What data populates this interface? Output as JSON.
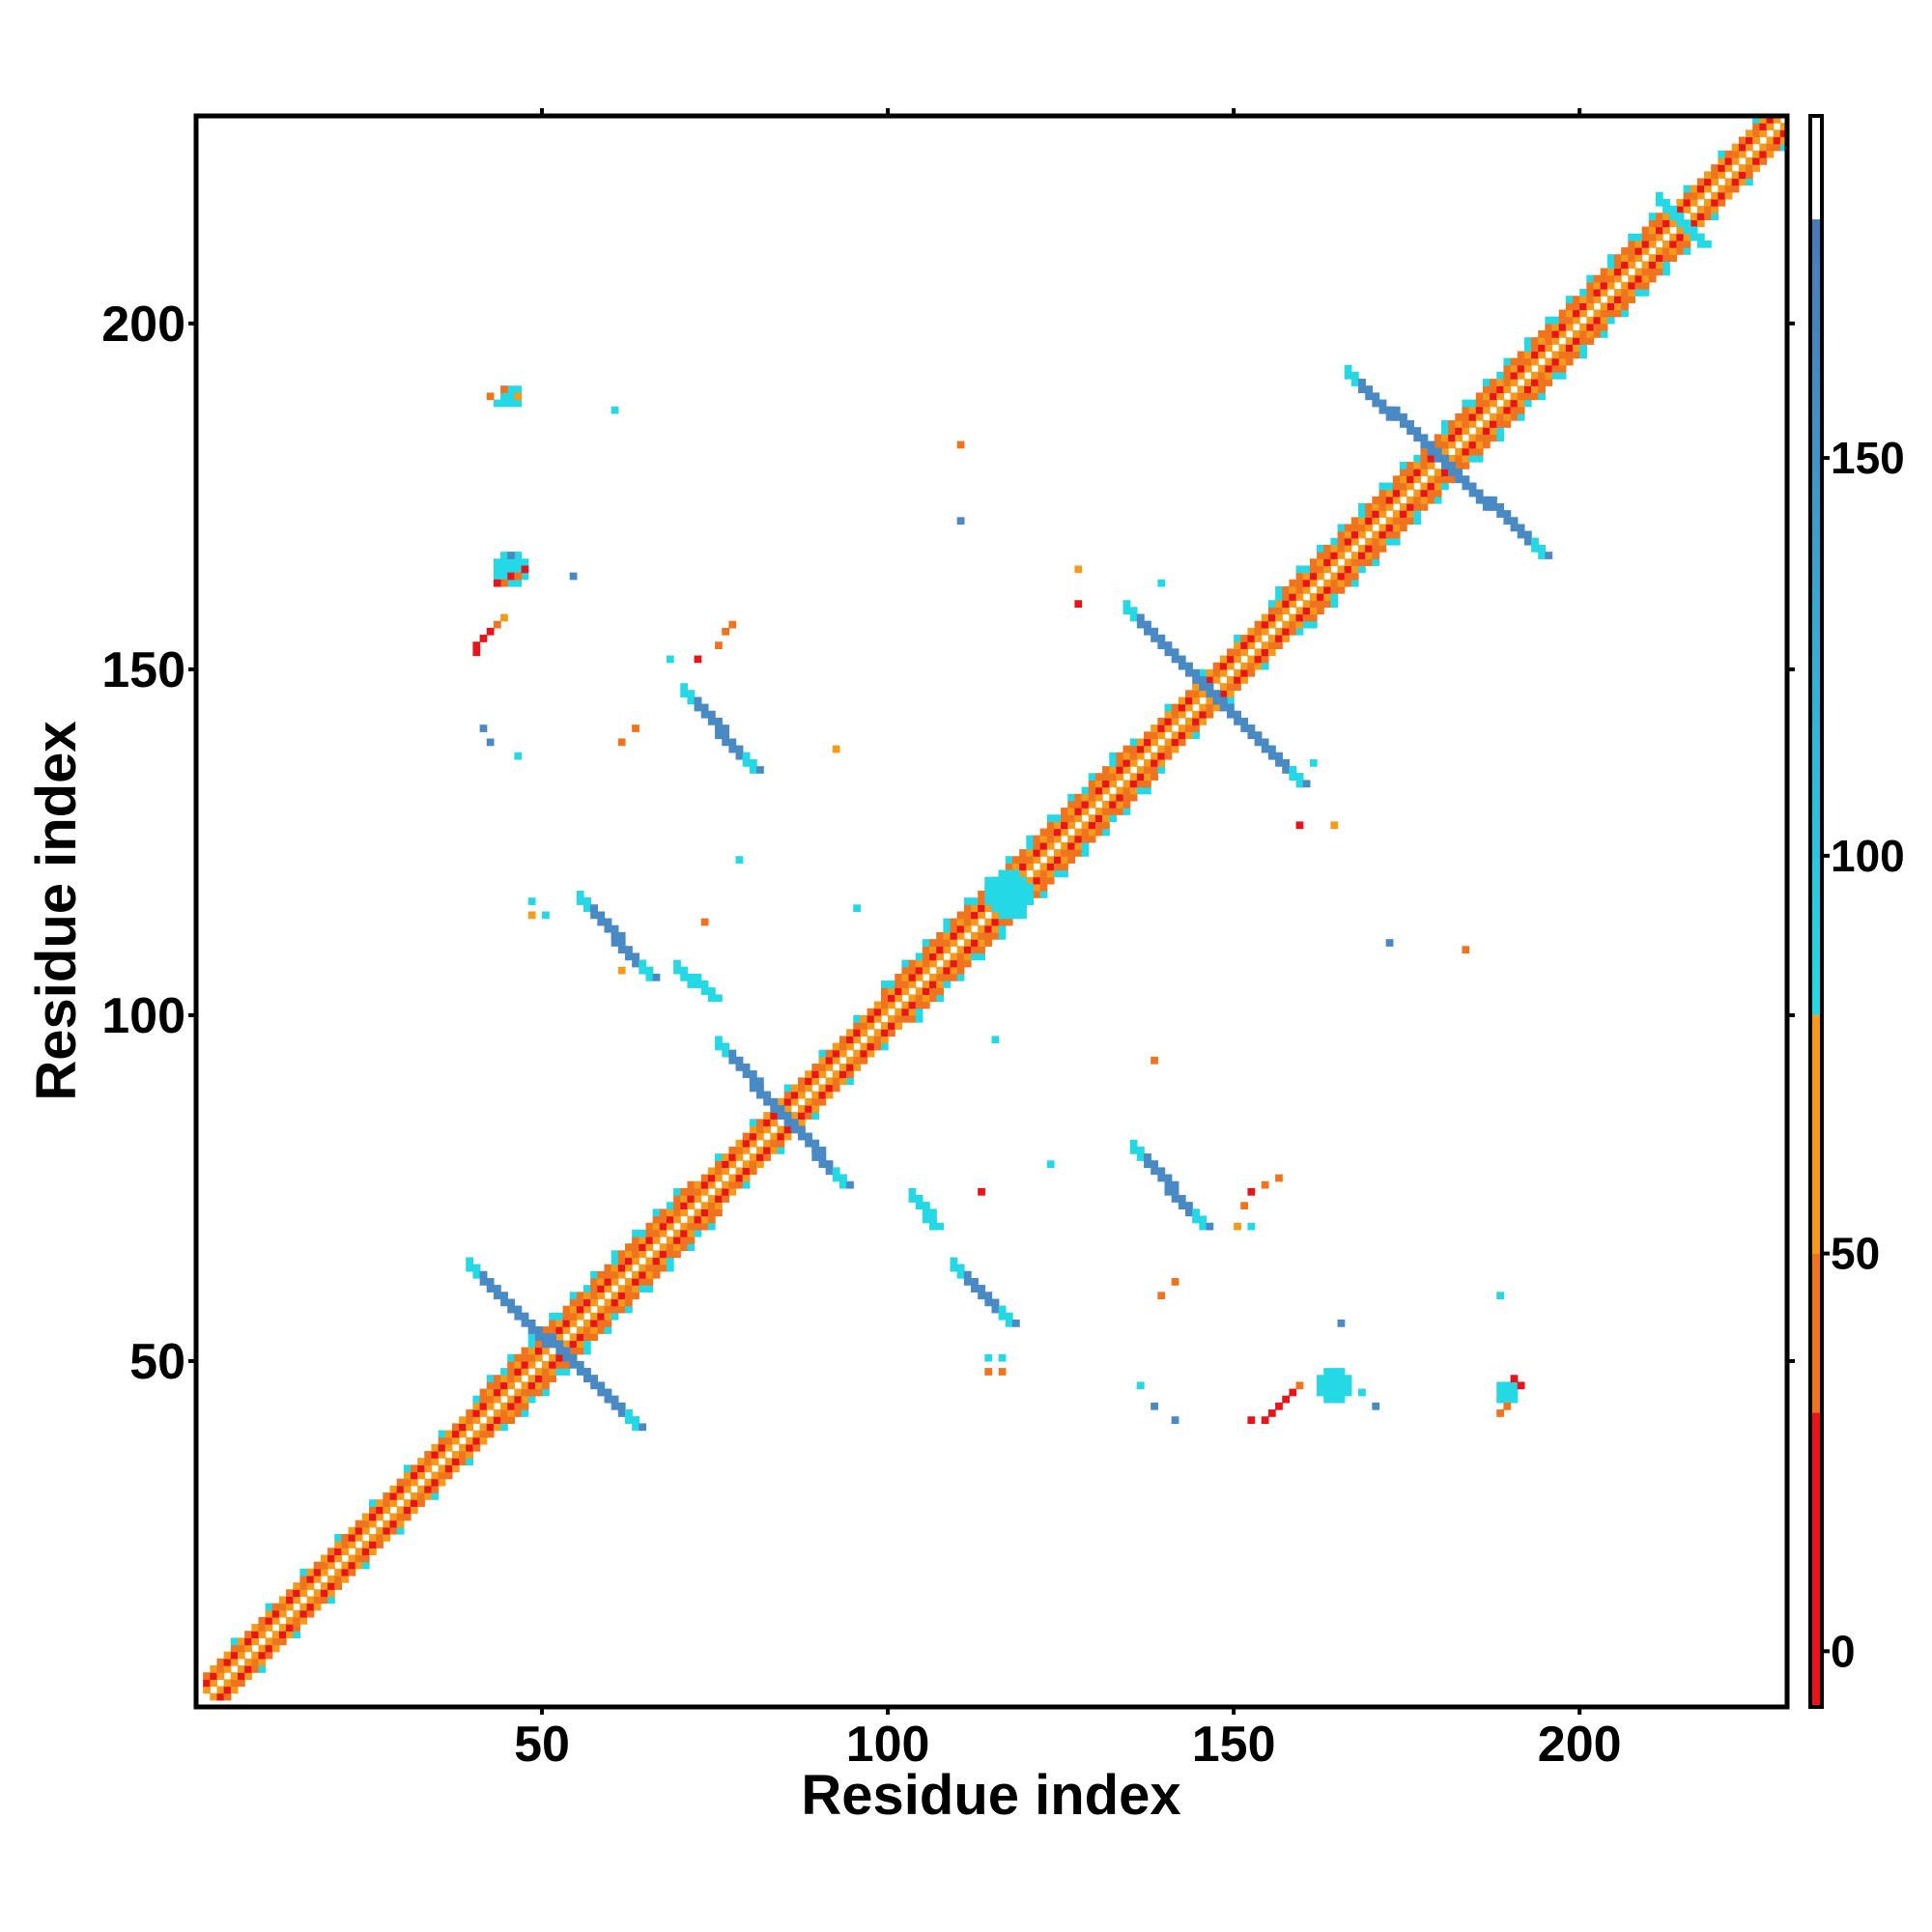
{
  "chart_data": {
    "type": "heatmap",
    "title": "",
    "xlabel": "Residue index",
    "ylabel": "Residue index",
    "xlim": [
      0,
      230
    ],
    "ylim": [
      0,
      230
    ],
    "x_ticks": [
      50,
      100,
      150,
      200
    ],
    "y_ticks": [
      50,
      100,
      150,
      200
    ],
    "x_tick_labels": [
      "50",
      "100",
      "150",
      "200"
    ],
    "y_tick_labels": [
      "50",
      "100",
      "150",
      "200"
    ],
    "grid": false,
    "colorbar": {
      "position": "right",
      "range": [
        -7,
        193
      ],
      "ticks": [
        0,
        50,
        100,
        150
      ],
      "tick_labels": [
        "0",
        "50",
        "100",
        "150"
      ],
      "bands": [
        {
          "from": -7,
          "to": 30,
          "color": "#e8141a"
        },
        {
          "from": 30,
          "to": 50,
          "color": "#f0731e"
        },
        {
          "from": 50,
          "to": 80,
          "color": "#f59a1a"
        },
        {
          "from": 80,
          "to": 180,
          "color": "#25d8e6"
        },
        {
          "from": 180,
          "to": 193,
          "color": "#ffffff"
        }
      ],
      "gradient_top_color": "#4a78b8"
    },
    "value_legend": {
      "red": 10,
      "orange_red": 40,
      "orange": 60,
      "cyan": 95,
      "steel_blue": 150
    },
    "colors": {
      "red": "#e8141a",
      "orange_red": "#f0731e",
      "orange": "#f59a1a",
      "cyan": "#25d8e6",
      "steel_blue": "#4a8ac4"
    },
    "diagonal_band": {
      "from": 1,
      "to": 229
    },
    "strands": [
      {
        "value": 150,
        "x0": 39,
        "y0": 63,
        "x1": 63,
        "y1": 40
      },
      {
        "value": 150,
        "x0": 75,
        "y0": 95,
        "x1": 93,
        "y1": 75
      },
      {
        "value": 150,
        "x0": 134,
        "y0": 158,
        "x1": 159,
        "y1": 133
      },
      {
        "value": 150,
        "x0": 166,
        "y0": 192,
        "x1": 194,
        "y1": 166
      },
      {
        "value": 150,
        "x0": 70,
        "y0": 146,
        "x1": 80,
        "y1": 135
      },
      {
        "value": 150,
        "x0": 55,
        "y0": 116,
        "x1": 65,
        "y1": 105
      },
      {
        "value": 95,
        "x0": 69,
        "y0": 106,
        "x1": 74,
        "y1": 102
      },
      {
        "value": 150,
        "x0": 135,
        "y0": 80,
        "x1": 145,
        "y1": 69
      },
      {
        "value": 150,
        "x0": 109,
        "y0": 63,
        "x1": 117,
        "y1": 55
      },
      {
        "value": 95,
        "x0": 103,
        "y0": 73,
        "x1": 106,
        "y1": 69
      },
      {
        "value": 95,
        "x0": 211,
        "y0": 217,
        "x1": 217,
        "y1": 211
      }
    ],
    "clusters": [
      {
        "value": 95,
        "x": 117,
        "y": 117,
        "r": 3
      },
      {
        "value": 95,
        "x": 164,
        "y": 46,
        "r": 2
      },
      {
        "value": 95,
        "x": 45,
        "y": 164,
        "r": 2
      },
      {
        "value": 95,
        "x": 189,
        "y": 45,
        "r": 1
      },
      {
        "value": 95,
        "x": 45,
        "y": 189,
        "r": 1
      }
    ],
    "contacts": [
      {
        "x": 44,
        "y": 190,
        "value": 40
      },
      {
        "x": 46,
        "y": 189,
        "value": 60
      },
      {
        "x": 42,
        "y": 189,
        "value": 40
      },
      {
        "x": 43,
        "y": 188,
        "value": 95
      },
      {
        "x": 60,
        "y": 187,
        "value": 95
      },
      {
        "x": 110,
        "y": 182,
        "value": 40
      },
      {
        "x": 110,
        "y": 171,
        "value": 150
      },
      {
        "x": 45,
        "y": 166,
        "value": 150
      },
      {
        "x": 46,
        "y": 165,
        "value": 95
      },
      {
        "x": 45,
        "y": 163,
        "value": 10
      },
      {
        "x": 46,
        "y": 163,
        "value": 40
      },
      {
        "x": 44,
        "y": 162,
        "value": 40
      },
      {
        "x": 47,
        "y": 164,
        "value": 10
      },
      {
        "x": 43,
        "y": 162,
        "value": 10
      },
      {
        "x": 54,
        "y": 163,
        "value": 150
      },
      {
        "x": 44,
        "y": 157,
        "value": 60
      },
      {
        "x": 43,
        "y": 156,
        "value": 40
      },
      {
        "x": 42,
        "y": 155,
        "value": 10
      },
      {
        "x": 41,
        "y": 154,
        "value": 10
      },
      {
        "x": 40,
        "y": 153,
        "value": 10
      },
      {
        "x": 40,
        "y": 152,
        "value": 10
      },
      {
        "x": 77,
        "y": 156,
        "value": 40
      },
      {
        "x": 76,
        "y": 155,
        "value": 40
      },
      {
        "x": 75,
        "y": 153,
        "value": 40
      },
      {
        "x": 72,
        "y": 151,
        "value": 10
      },
      {
        "x": 68,
        "y": 151,
        "value": 95
      },
      {
        "x": 63,
        "y": 141,
        "value": 40
      },
      {
        "x": 61,
        "y": 139,
        "value": 40
      },
      {
        "x": 41,
        "y": 141,
        "value": 150
      },
      {
        "x": 42,
        "y": 139,
        "value": 150
      },
      {
        "x": 46,
        "y": 137,
        "value": 95
      },
      {
        "x": 92,
        "y": 138,
        "value": 60
      },
      {
        "x": 127,
        "y": 159,
        "value": 10
      },
      {
        "x": 127,
        "y": 164,
        "value": 60
      },
      {
        "x": 139,
        "y": 162,
        "value": 95
      },
      {
        "x": 161,
        "y": 136,
        "value": 95
      },
      {
        "x": 159,
        "y": 127,
        "value": 10
      },
      {
        "x": 164,
        "y": 127,
        "value": 60
      },
      {
        "x": 78,
        "y": 122,
        "value": 95
      },
      {
        "x": 48,
        "y": 116,
        "value": 95
      },
      {
        "x": 48,
        "y": 114,
        "value": 60
      },
      {
        "x": 50,
        "y": 114,
        "value": 95
      },
      {
        "x": 73,
        "y": 113,
        "value": 40
      },
      {
        "x": 95,
        "y": 115,
        "value": 95
      },
      {
        "x": 172,
        "y": 110,
        "value": 150
      },
      {
        "x": 183,
        "y": 109,
        "value": 40
      },
      {
        "x": 61,
        "y": 106,
        "value": 60
      },
      {
        "x": 115,
        "y": 96,
        "value": 95
      },
      {
        "x": 138,
        "y": 93,
        "value": 40
      },
      {
        "x": 123,
        "y": 78,
        "value": 95
      },
      {
        "x": 113,
        "y": 74,
        "value": 10
      },
      {
        "x": 156,
        "y": 76,
        "value": 40
      },
      {
        "x": 154,
        "y": 75,
        "value": 40
      },
      {
        "x": 152,
        "y": 74,
        "value": 10
      },
      {
        "x": 151,
        "y": 72,
        "value": 40
      },
      {
        "x": 150,
        "y": 69,
        "value": 60
      },
      {
        "x": 152,
        "y": 69,
        "value": 95
      },
      {
        "x": 141,
        "y": 61,
        "value": 40
      },
      {
        "x": 139,
        "y": 59,
        "value": 40
      },
      {
        "x": 188,
        "y": 59,
        "value": 95
      },
      {
        "x": 165,
        "y": 55,
        "value": 150
      },
      {
        "x": 114,
        "y": 50,
        "value": 95
      },
      {
        "x": 116,
        "y": 50,
        "value": 95
      },
      {
        "x": 114,
        "y": 48,
        "value": 40
      },
      {
        "x": 116,
        "y": 48,
        "value": 40
      },
      {
        "x": 136,
        "y": 46,
        "value": 95
      },
      {
        "x": 138,
        "y": 43,
        "value": 150
      },
      {
        "x": 141,
        "y": 41,
        "value": 150
      },
      {
        "x": 152,
        "y": 41,
        "value": 10
      },
      {
        "x": 154,
        "y": 41,
        "value": 10
      },
      {
        "x": 155,
        "y": 42,
        "value": 10
      },
      {
        "x": 156,
        "y": 43,
        "value": 10
      },
      {
        "x": 157,
        "y": 44,
        "value": 10
      },
      {
        "x": 158,
        "y": 45,
        "value": 10
      },
      {
        "x": 159,
        "y": 46,
        "value": 40
      },
      {
        "x": 168,
        "y": 45,
        "value": 95
      },
      {
        "x": 170,
        "y": 43,
        "value": 150
      },
      {
        "x": 190,
        "y": 47,
        "value": 10
      },
      {
        "x": 191,
        "y": 46,
        "value": 10
      },
      {
        "x": 189,
        "y": 43,
        "value": 40
      },
      {
        "x": 188,
        "y": 42,
        "value": 40
      }
    ]
  }
}
